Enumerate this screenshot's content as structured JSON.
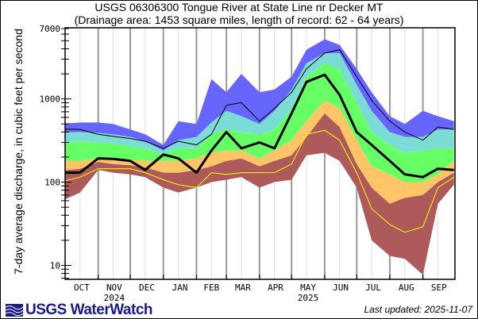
{
  "header": {
    "title": "USGS 06306300 Tongue River at State Line nr Decker MT",
    "subtitle": "(Drainage area: 1453 square miles, length of record: 62 - 64 years)"
  },
  "footer": {
    "logo_text": "USGS WaterWatch",
    "last_updated": "Last updated: 2025-11-07"
  },
  "chart_data": {
    "type": "area",
    "title": "USGS 06306300 Tongue River at State Line nr Decker MT",
    "subtitle": "(Drainage area: 1453 square miles, length of record: 62 - 64 years)",
    "xlabel": "",
    "ylabel": "7-day average discharge, in cubic feet per second",
    "y_scale": "log",
    "ylim": [
      6.8,
      7000
    ],
    "xlim": [
      "2024-10-01",
      "2025-09-30"
    ],
    "y_ticks": [
      10,
      100,
      1000,
      7000
    ],
    "y_tick_labels": [
      "10",
      "100",
      "1000",
      "7000"
    ],
    "x_tick_labels": [
      "OCT",
      "NOV",
      "DEC",
      "JAN",
      "FEB",
      "MAR",
      "APR",
      "MAY",
      "JUN",
      "JUL",
      "AUG",
      "SEP"
    ],
    "year_labels": [
      {
        "under": "NOV",
        "text": "2024"
      },
      {
        "under": "MAY",
        "text": "2025"
      }
    ],
    "grid": true,
    "legend": "none",
    "x": [
      "2024-10-01",
      "2024-10-15",
      "2024-11-01",
      "2024-11-15",
      "2024-12-01",
      "2024-12-15",
      "2025-01-01",
      "2025-01-15",
      "2025-02-01",
      "2025-02-15",
      "2025-03-01",
      "2025-03-15",
      "2025-04-01",
      "2025-04-15",
      "2025-05-01",
      "2025-05-15",
      "2025-06-01",
      "2025-06-15",
      "2025-07-01",
      "2025-07-15",
      "2025-08-01",
      "2025-08-15",
      "2025-09-01",
      "2025-09-15",
      "2025-09-30"
    ],
    "bands": [
      {
        "color": "#AE5A5A",
        "lower": [
          62,
          75,
          140,
          130,
          124,
          115,
          86,
          75,
          86,
          100,
          107,
          115,
          86,
          100,
          107,
          210,
          225,
          180,
          86,
          20,
          13,
          12,
          7.7,
          55,
          93
        ],
        "upper": [
          139,
          145,
          175,
          165,
          160,
          150,
          130,
          130,
          140,
          155,
          180,
          193,
          155,
          180,
          210,
          350,
          670,
          460,
          165,
          86,
          55,
          65,
          70,
          100,
          130
        ]
      },
      {
        "color": "#FFC566",
        "lower": [
          139,
          145,
          175,
          165,
          160,
          150,
          130,
          130,
          140,
          155,
          180,
          193,
          155,
          180,
          210,
          350,
          670,
          460,
          165,
          86,
          55,
          65,
          70,
          100,
          130
        ],
        "upper": [
          181,
          180,
          193,
          185,
          185,
          180,
          180,
          180,
          193,
          225,
          240,
          240,
          193,
          240,
          320,
          540,
          960,
          770,
          320,
          155,
          124,
          100,
          100,
          124,
          180
        ]
      },
      {
        "color": "#66FF66",
        "lower": [
          181,
          180,
          193,
          185,
          185,
          180,
          180,
          180,
          193,
          225,
          240,
          240,
          193,
          240,
          320,
          540,
          960,
          770,
          320,
          155,
          124,
          100,
          100,
          124,
          180
        ],
        "upper": [
          299,
          310,
          300,
          290,
          270,
          255,
          215,
          255,
          255,
          375,
          430,
          400,
          375,
          430,
          770,
          1850,
          2680,
          2300,
          900,
          400,
          280,
          225,
          240,
          255,
          255
        ]
      },
      {
        "color": "#7ADCD4",
        "lower": [
          299,
          310,
          300,
          290,
          270,
          255,
          215,
          255,
          255,
          375,
          430,
          400,
          375,
          430,
          770,
          1850,
          2680,
          2300,
          900,
          400,
          280,
          225,
          240,
          255,
          255
        ],
        "upper": [
          398,
          400,
          390,
          375,
          350,
          310,
          240,
          320,
          350,
          520,
          720,
          620,
          500,
          720,
          1300,
          2680,
          3550,
          3550,
          1480,
          720,
          400,
          350,
          350,
          430,
          430
        ]
      },
      {
        "color": "#6666FF",
        "lower": [
          398,
          400,
          390,
          375,
          350,
          310,
          240,
          320,
          350,
          520,
          720,
          620,
          500,
          720,
          1300,
          2680,
          3550,
          3550,
          1480,
          720,
          400,
          350,
          350,
          430,
          430
        ],
        "upper": [
          507,
          520,
          520,
          500,
          430,
          375,
          280,
          540,
          500,
          1730,
          1200,
          2000,
          1200,
          1300,
          1850,
          3900,
          5200,
          4450,
          2300,
          1200,
          620,
          500,
          720,
          620,
          540
        ]
      }
    ],
    "series": [
      {
        "color": "#FFFF00",
        "width": 1,
        "values": [
          104,
          115,
          145,
          145,
          145,
          130,
          107,
          93,
          86,
          130,
          124,
          130,
          130,
          130,
          165,
          375,
          420,
          320,
          130,
          48,
          31,
          25,
          29,
          86,
          115
        ]
      },
      {
        "color": "#000000",
        "width": 1,
        "values": [
          434,
          430,
          375,
          355,
          335,
          310,
          255,
          310,
          280,
          375,
          840,
          900,
          540,
          770,
          1200,
          2300,
          3550,
          3900,
          1850,
          960,
          540,
          400,
          320,
          460,
          430
        ]
      },
      {
        "color": "#000000",
        "width": 3,
        "values": [
          130,
          130,
          193,
          190,
          180,
          140,
          215,
          193,
          130,
          240,
          400,
          255,
          300,
          255,
          670,
          1600,
          1950,
          1120,
          400,
          280,
          180,
          124,
          115,
          145,
          140
        ]
      }
    ]
  }
}
